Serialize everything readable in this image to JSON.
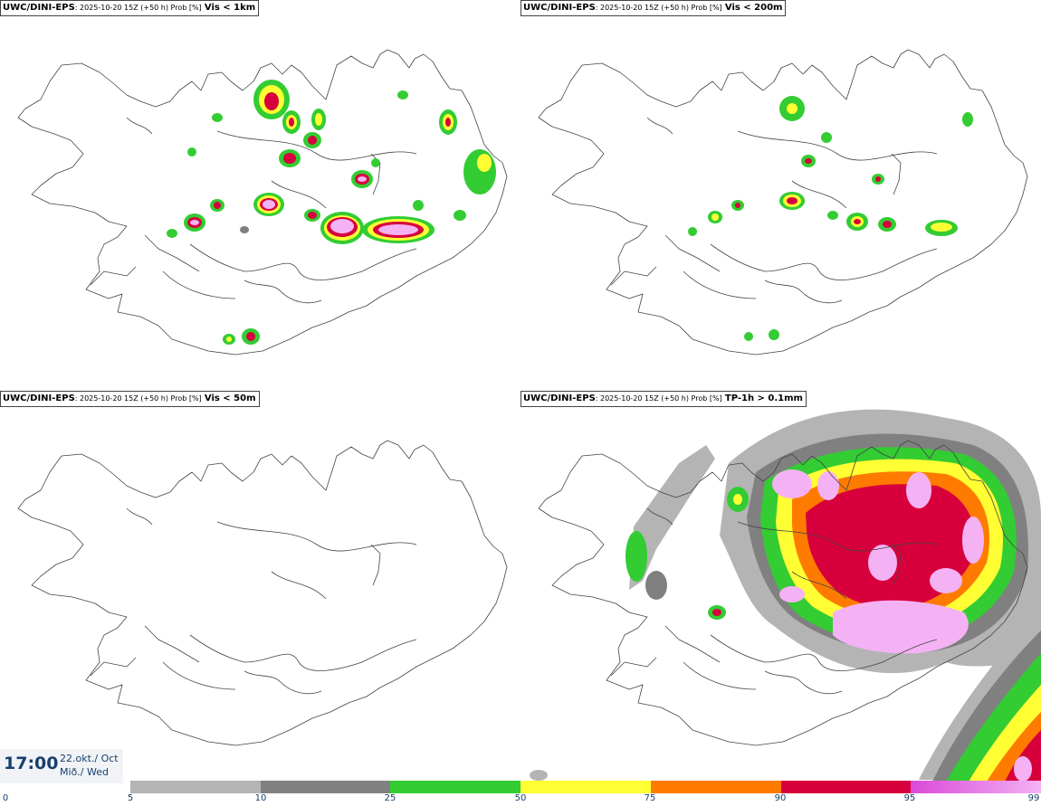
{
  "panels": [
    {
      "model": "UWC/DINI-EPS",
      "meta": ": 2025-10-20 15Z (+50 h) Prob [%]",
      "variable": "Vis < 1km"
    },
    {
      "model": "UWC/DINI-EPS",
      "meta": ": 2025-10-20 15Z (+50 h) Prob [%]",
      "variable": "Vis < 200m"
    },
    {
      "model": "UWC/DINI-EPS",
      "meta": ": 2025-10-20 15Z (+50 h) Prob [%]",
      "variable": "Vis < 50m"
    },
    {
      "model": "UWC/DINI-EPS",
      "meta": ": 2025-10-20 15Z (+50 h) Prob [%]",
      "variable": "TP-1h > 0.1mm"
    }
  ],
  "time": {
    "clock": "17:00",
    "date_line1": "22.okt./ Oct",
    "date_line2": "Mið./ Wed"
  },
  "colorbar": {
    "ticks": [
      "0",
      "5",
      "10",
      "25",
      "50",
      "75",
      "90",
      "95",
      "99"
    ],
    "colors": {
      "c5": "#b4b4b4",
      "c10": "#808080",
      "c25": "#33cc33",
      "c50": "#ffff33",
      "c75": "#ff7b00",
      "c90": "#d8003c",
      "c95": "#d94ad9",
      "c99": "#f4b2f4"
    }
  }
}
